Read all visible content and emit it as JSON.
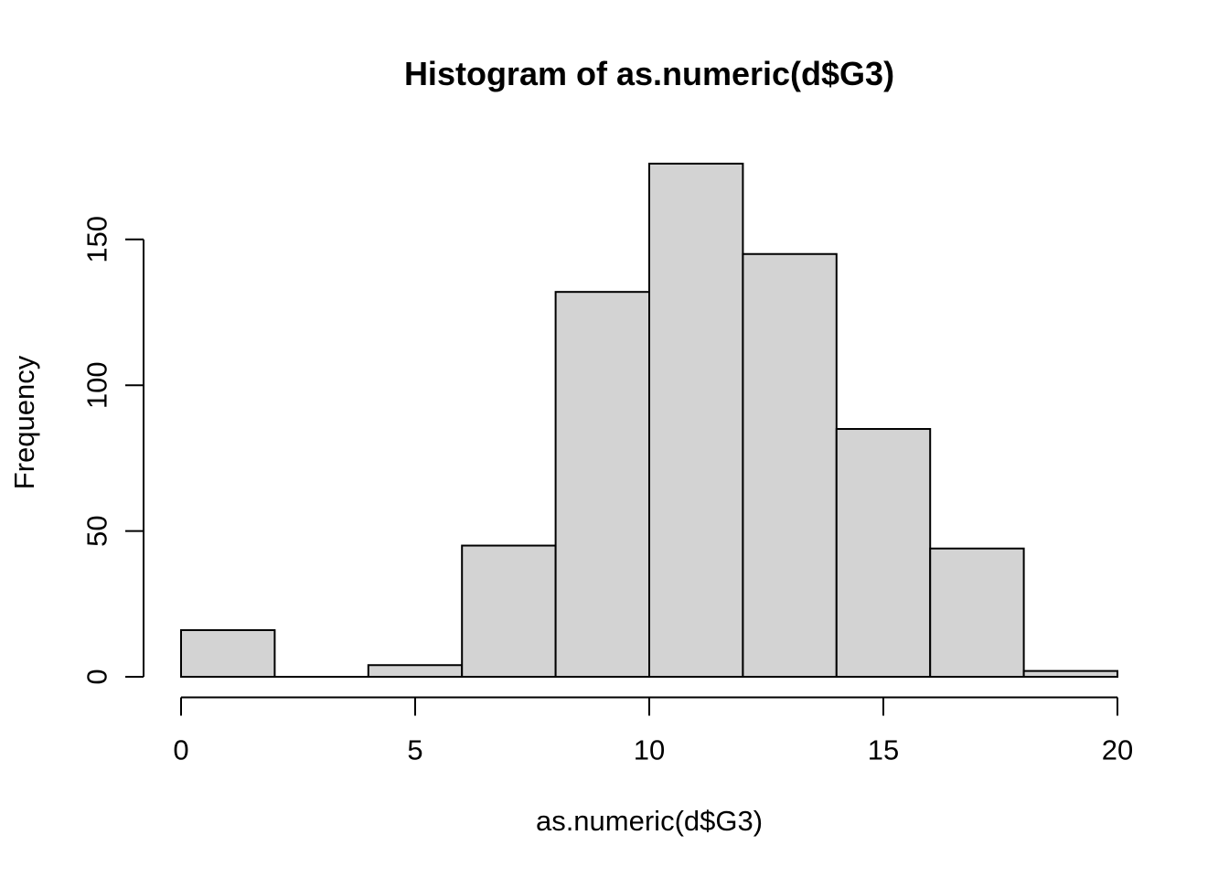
{
  "figure": {
    "background": "#ffffff"
  },
  "chart_data": {
    "type": "bar",
    "subtype": "histogram",
    "title": "Histogram of as.numeric(d$G3)",
    "xlabel": "as.numeric(d$G3)",
    "ylabel": "Frequency",
    "bin_breaks": [
      0,
      2,
      4,
      6,
      8,
      10,
      12,
      14,
      16,
      18,
      20
    ],
    "counts": [
      16,
      0,
      4,
      45,
      132,
      176,
      145,
      85,
      44,
      2
    ],
    "x_ticks": [
      0,
      5,
      10,
      15,
      20
    ],
    "y_ticks": [
      0,
      50,
      100,
      150
    ],
    "xlim": [
      0,
      20
    ],
    "ylim": [
      0,
      176
    ],
    "grid": false,
    "legend_position": "none",
    "bar_fill": "#D3D3D3",
    "bar_border": "#000000",
    "axis_color": "#000000",
    "text_color": "#000000"
  }
}
